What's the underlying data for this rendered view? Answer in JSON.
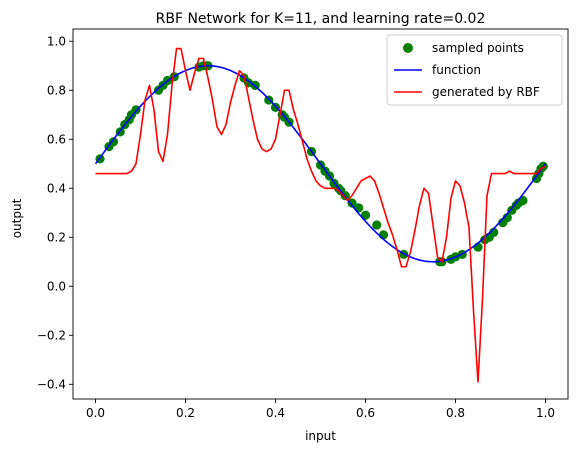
{
  "chart_data": {
    "type": "line",
    "title": "RBF Network for K=11, and learning rate=0.02",
    "xlabel": "input",
    "ylabel": "output",
    "xlim": [
      -0.05,
      1.05
    ],
    "ylim": [
      -0.46,
      1.05
    ],
    "xticks": [
      0.0,
      0.2,
      0.4,
      0.6,
      0.8,
      1.0
    ],
    "xtick_labels": [
      "0.0",
      "0.2",
      "0.4",
      "0.6",
      "0.8",
      "1.0"
    ],
    "yticks": [
      -0.4,
      -0.2,
      0.0,
      0.2,
      0.4,
      0.6,
      0.8,
      1.0
    ],
    "ytick_labels": [
      "−0.4",
      "−0.2",
      "0.0",
      "0.2",
      "0.4",
      "0.6",
      "0.8",
      "1.0"
    ],
    "legend_position": "top-right",
    "series": [
      {
        "name": "sampled points",
        "kind": "scatter",
        "color": "#008000",
        "x": [
          0.01,
          0.03,
          0.04,
          0.055,
          0.065,
          0.075,
          0.08,
          0.09,
          0.14,
          0.15,
          0.16,
          0.175,
          0.23,
          0.24,
          0.25,
          0.33,
          0.34,
          0.355,
          0.385,
          0.4,
          0.415,
          0.42,
          0.43,
          0.48,
          0.5,
          0.51,
          0.52,
          0.53,
          0.54,
          0.545,
          0.555,
          0.57,
          0.585,
          0.6,
          0.625,
          0.64,
          0.685,
          0.765,
          0.77,
          0.79,
          0.8,
          0.815,
          0.85,
          0.865,
          0.875,
          0.885,
          0.905,
          0.915,
          0.925,
          0.935,
          0.94,
          0.95,
          0.98,
          0.985,
          0.99,
          0.995
        ],
        "y": [
          0.52,
          0.57,
          0.59,
          0.63,
          0.66,
          0.68,
          0.7,
          0.72,
          0.8,
          0.82,
          0.84,
          0.855,
          0.895,
          0.9,
          0.9,
          0.85,
          0.83,
          0.82,
          0.76,
          0.73,
          0.7,
          0.69,
          0.67,
          0.55,
          0.495,
          0.47,
          0.45,
          0.42,
          0.4,
          0.39,
          0.37,
          0.34,
          0.32,
          0.29,
          0.25,
          0.21,
          0.13,
          0.1,
          0.1,
          0.11,
          0.12,
          0.13,
          0.16,
          0.19,
          0.2,
          0.22,
          0.26,
          0.28,
          0.31,
          0.33,
          0.34,
          0.35,
          0.44,
          0.46,
          0.48,
          0.49
        ]
      },
      {
        "name": "function",
        "kind": "line",
        "color": "#0000ff",
        "formula": "0.5 + 0.4*sin(2*pi*x)"
      },
      {
        "name": "generated by RBF",
        "kind": "line",
        "color": "#ff0000",
        "x": [
          0.0,
          0.02,
          0.04,
          0.06,
          0.07,
          0.08,
          0.09,
          0.1,
          0.11,
          0.12,
          0.13,
          0.14,
          0.15,
          0.16,
          0.17,
          0.18,
          0.19,
          0.2,
          0.21,
          0.22,
          0.23,
          0.24,
          0.25,
          0.26,
          0.27,
          0.28,
          0.29,
          0.3,
          0.31,
          0.32,
          0.33,
          0.34,
          0.35,
          0.36,
          0.37,
          0.38,
          0.39,
          0.4,
          0.41,
          0.42,
          0.43,
          0.44,
          0.45,
          0.46,
          0.47,
          0.48,
          0.49,
          0.5,
          0.51,
          0.52,
          0.53,
          0.54,
          0.55,
          0.56,
          0.57,
          0.58,
          0.59,
          0.6,
          0.61,
          0.62,
          0.63,
          0.64,
          0.65,
          0.66,
          0.67,
          0.68,
          0.69,
          0.7,
          0.71,
          0.72,
          0.73,
          0.74,
          0.75,
          0.76,
          0.77,
          0.78,
          0.79,
          0.8,
          0.81,
          0.82,
          0.83,
          0.84,
          0.85,
          0.86,
          0.87,
          0.88,
          0.89,
          0.9,
          0.91,
          0.92,
          0.93,
          0.94,
          0.95,
          0.96,
          0.97,
          0.98,
          0.99,
          1.0
        ],
        "y": [
          0.46,
          0.46,
          0.46,
          0.46,
          0.46,
          0.47,
          0.5,
          0.62,
          0.76,
          0.82,
          0.72,
          0.55,
          0.51,
          0.62,
          0.82,
          0.97,
          0.97,
          0.88,
          0.8,
          0.87,
          0.93,
          0.93,
          0.85,
          0.76,
          0.65,
          0.62,
          0.66,
          0.75,
          0.82,
          0.88,
          0.86,
          0.77,
          0.68,
          0.6,
          0.56,
          0.55,
          0.56,
          0.6,
          0.7,
          0.8,
          0.8,
          0.72,
          0.66,
          0.59,
          0.52,
          0.47,
          0.43,
          0.41,
          0.4,
          0.4,
          0.4,
          0.39,
          0.37,
          0.35,
          0.37,
          0.4,
          0.43,
          0.44,
          0.45,
          0.43,
          0.38,
          0.32,
          0.26,
          0.21,
          0.15,
          0.08,
          0.08,
          0.14,
          0.23,
          0.33,
          0.4,
          0.38,
          0.25,
          0.12,
          0.1,
          0.2,
          0.36,
          0.43,
          0.41,
          0.34,
          0.24,
          -0.1,
          -0.39,
          -0.05,
          0.37,
          0.46,
          0.46,
          0.46,
          0.46,
          0.47,
          0.46,
          0.46,
          0.46,
          0.46,
          0.46,
          0.46,
          0.48,
          0.49
        ]
      }
    ]
  }
}
